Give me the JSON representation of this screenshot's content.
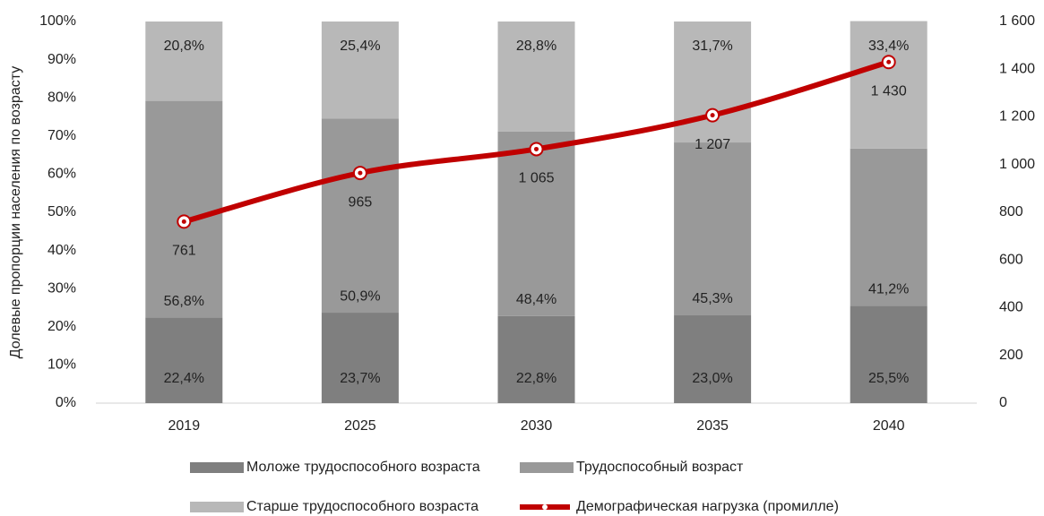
{
  "chart_data": {
    "type": "bar",
    "stacked": true,
    "y_axis_label": "Долевые пропорции населения по возрасту",
    "categories": [
      "2019",
      "2025",
      "2030",
      "2035",
      "2040"
    ],
    "series": [
      {
        "name": "Моложе трудоспособного возраста",
        "color": "#7f7f7f",
        "values": [
          22.4,
          23.7,
          22.8,
          23.0,
          25.5
        ],
        "value_labels": [
          "22,4%",
          "23,7%",
          "22,8%",
          "23,0%",
          "25,5%"
        ]
      },
      {
        "name": "Трудоспособный возраст",
        "color": "#999999",
        "values": [
          56.8,
          50.9,
          48.4,
          45.3,
          41.2
        ],
        "value_labels": [
          "56,8%",
          "50,9%",
          "48,4%",
          "45,3%",
          "41,2%"
        ]
      },
      {
        "name": "Старше трудоспособного возраста",
        "color": "#b8b8b8",
        "values": [
          20.8,
          25.4,
          28.8,
          31.7,
          33.4
        ],
        "value_labels": [
          "20,8%",
          "25,4%",
          "28,8%",
          "31,7%",
          "33,4%"
        ]
      },
      {
        "name": "Демографическая нагрузка (промилле)",
        "type": "line",
        "axis": "y2",
        "color": "#c00000",
        "values": [
          761,
          965,
          1065,
          1207,
          1430
        ],
        "value_labels": [
          "761",
          "965",
          "1 065",
          "1 207",
          "1 430"
        ]
      }
    ],
    "ylim": [
      0,
      100
    ],
    "yticks": [
      {
        "value": 0,
        "label": "0%"
      },
      {
        "value": 10,
        "label": "10%"
      },
      {
        "value": 20,
        "label": "20%"
      },
      {
        "value": 30,
        "label": "30%"
      },
      {
        "value": 40,
        "label": "40%"
      },
      {
        "value": 50,
        "label": "50%"
      },
      {
        "value": 60,
        "label": "60%"
      },
      {
        "value": 70,
        "label": "70%"
      },
      {
        "value": 80,
        "label": "80%"
      },
      {
        "value": 90,
        "label": "90%"
      },
      {
        "value": 100,
        "label": "100%"
      }
    ],
    "y2lim": [
      0,
      1600
    ],
    "y2ticks": [
      0,
      200,
      400,
      600,
      800,
      {
        "value": 1000,
        "label": "1 000"
      },
      {
        "value": 1200,
        "label": "1 200"
      },
      {
        "value": 1400,
        "label": "1 400"
      },
      {
        "value": 1600,
        "label": "1 600"
      }
    ],
    "grid": false,
    "legend": "bottom"
  }
}
